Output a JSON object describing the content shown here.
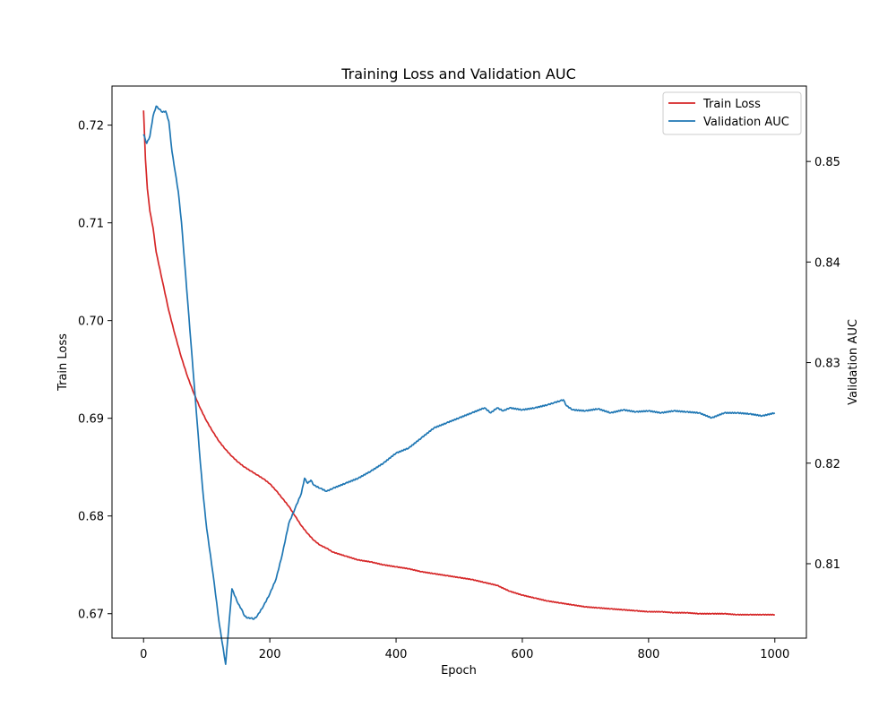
{
  "chart_data": {
    "type": "line",
    "title": "Training Loss and Validation AUC",
    "xlabel": "Epoch",
    "ylabel_left": "Train Loss",
    "ylabel_right": "Validation AUC",
    "xlim": [
      -50,
      1050
    ],
    "ylim_left": [
      0.6675,
      0.724
    ],
    "ylim_right": [
      0.8026,
      0.8575
    ],
    "x_ticks": [
      0,
      200,
      400,
      600,
      800,
      1000
    ],
    "y_ticks_left": [
      0.67,
      0.68,
      0.69,
      0.7,
      0.71,
      0.72
    ],
    "y_ticks_right": [
      0.81,
      0.82,
      0.83,
      0.84,
      0.85
    ],
    "x_tick_labels": [
      "0",
      "200",
      "400",
      "600",
      "800",
      "1000"
    ],
    "y_tick_labels_left": [
      "0.67",
      "0.68",
      "0.69",
      "0.70",
      "0.71",
      "0.72"
    ],
    "y_tick_labels_right": [
      "0.81",
      "0.82",
      "0.83",
      "0.84",
      "0.85"
    ],
    "legend_position": "top-right",
    "grid": false,
    "series": [
      {
        "name": "Train Loss",
        "axis": "left",
        "color": "#d62728",
        "x": [
          0,
          3,
          6,
          10,
          15,
          20,
          30,
          40,
          50,
          60,
          70,
          80,
          90,
          100,
          110,
          120,
          130,
          140,
          150,
          160,
          170,
          180,
          190,
          200,
          210,
          220,
          230,
          240,
          250,
          260,
          270,
          280,
          290,
          300,
          320,
          340,
          360,
          380,
          400,
          420,
          440,
          460,
          480,
          500,
          520,
          540,
          560,
          580,
          600,
          620,
          640,
          660,
          680,
          700,
          720,
          740,
          760,
          780,
          800,
          820,
          840,
          860,
          880,
          900,
          920,
          940,
          960,
          980,
          1000
        ],
        "values": [
          0.7215,
          0.7165,
          0.7135,
          0.7112,
          0.7095,
          0.707,
          0.704,
          0.701,
          0.6985,
          0.6962,
          0.6942,
          0.6925,
          0.691,
          0.6897,
          0.6886,
          0.6876,
          0.6868,
          0.6861,
          0.6855,
          0.685,
          0.6846,
          0.6842,
          0.6838,
          0.6833,
          0.6826,
          0.6818,
          0.681,
          0.68,
          0.679,
          0.6782,
          0.6775,
          0.677,
          0.6767,
          0.6763,
          0.6759,
          0.6755,
          0.6753,
          0.675,
          0.6748,
          0.6746,
          0.6743,
          0.6741,
          0.6739,
          0.6737,
          0.6735,
          0.6732,
          0.6729,
          0.6723,
          0.6719,
          0.6716,
          0.6713,
          0.6711,
          0.6709,
          0.6707,
          0.6706,
          0.6705,
          0.6704,
          0.6703,
          0.6702,
          0.6702,
          0.6701,
          0.6701,
          0.67,
          0.67,
          0.67,
          0.6699,
          0.6699,
          0.6699,
          0.6699
        ]
      },
      {
        "name": "Validation AUC",
        "axis": "right",
        "color": "#1f77b4",
        "x": [
          0,
          5,
          10,
          15,
          20,
          25,
          30,
          35,
          40,
          45,
          50,
          55,
          60,
          65,
          70,
          75,
          80,
          85,
          90,
          95,
          100,
          110,
          120,
          130,
          140,
          150,
          155,
          160,
          165,
          170,
          175,
          180,
          190,
          200,
          210,
          220,
          230,
          240,
          250,
          255,
          260,
          265,
          270,
          280,
          290,
          300,
          320,
          340,
          360,
          380,
          400,
          420,
          440,
          460,
          480,
          500,
          520,
          540,
          550,
          560,
          570,
          580,
          600,
          620,
          640,
          650,
          660,
          665,
          670,
          680,
          700,
          720,
          740,
          760,
          780,
          800,
          820,
          840,
          860,
          880,
          900,
          920,
          940,
          960,
          980,
          1000
        ],
        "values": [
          0.8527,
          0.8518,
          0.8525,
          0.8545,
          0.8555,
          0.8552,
          0.8549,
          0.855,
          0.854,
          0.851,
          0.849,
          0.847,
          0.844,
          0.84,
          0.836,
          0.832,
          0.828,
          0.824,
          0.82,
          0.8165,
          0.8135,
          0.809,
          0.804,
          0.8,
          0.8075,
          0.806,
          0.8055,
          0.8048,
          0.8046,
          0.8046,
          0.8045,
          0.8048,
          0.8058,
          0.807,
          0.8085,
          0.811,
          0.814,
          0.8155,
          0.817,
          0.8185,
          0.818,
          0.8183,
          0.8178,
          0.8175,
          0.8172,
          0.8175,
          0.818,
          0.8185,
          0.8192,
          0.82,
          0.821,
          0.8215,
          0.8225,
          0.8235,
          0.824,
          0.8245,
          0.825,
          0.8255,
          0.825,
          0.8255,
          0.8252,
          0.8255,
          0.8253,
          0.8255,
          0.8258,
          0.826,
          0.8262,
          0.8263,
          0.8257,
          0.8253,
          0.8252,
          0.8254,
          0.825,
          0.8253,
          0.8251,
          0.8252,
          0.825,
          0.8252,
          0.8251,
          0.825,
          0.8245,
          0.825,
          0.825,
          0.8249,
          0.8247,
          0.825
        ]
      }
    ]
  }
}
